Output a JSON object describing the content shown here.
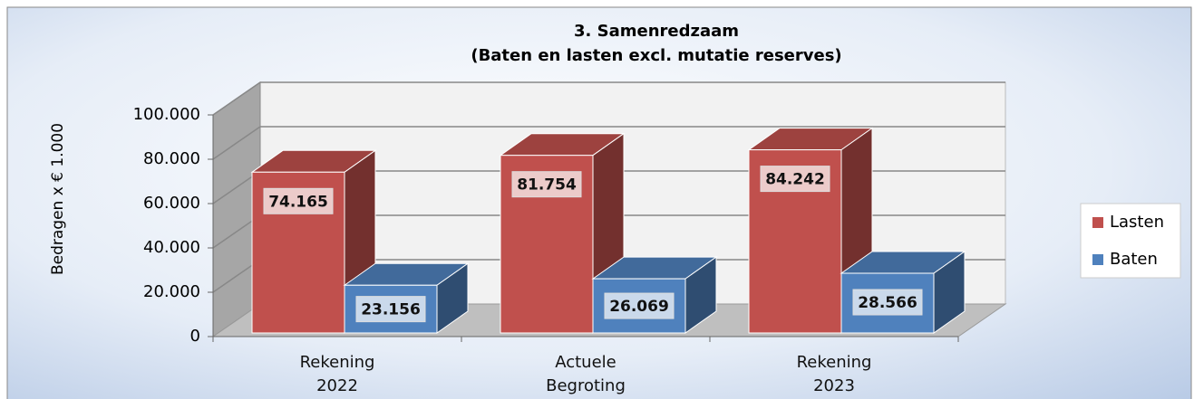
{
  "chart_data": {
    "type": "bar3d",
    "title": "3. Samenredzaam",
    "subtitle": "(Baten en lasten excl. mutatie reserves)",
    "y_label": "Bedragen x € 1.000",
    "categories": [
      "Rekening 2022",
      "Actuele Begroting",
      "Rekening 2023"
    ],
    "series": [
      {
        "name": "Lasten",
        "color": "#c0504d",
        "values": [
          74165,
          81754,
          84242
        ],
        "value_labels": [
          "74.165",
          "81.754",
          "84.242"
        ]
      },
      {
        "name": "Baten",
        "color": "#4f81bd",
        "values": [
          23156,
          26069,
          28566
        ],
        "value_labels": [
          "23.156",
          "26.069",
          "28.566"
        ]
      }
    ],
    "ylim": [
      0,
      100000
    ],
    "yticks": [
      0,
      {
        "value": 20000,
        "label": "20.000"
      },
      {
        "value": 40000,
        "label": "40.000"
      },
      {
        "value": 60000,
        "label": "60.000"
      },
      {
        "value": 80000,
        "label": "80.000"
      },
      {
        "value": 100000,
        "label": "100.000"
      }
    ],
    "grid": true,
    "legend": "right"
  }
}
